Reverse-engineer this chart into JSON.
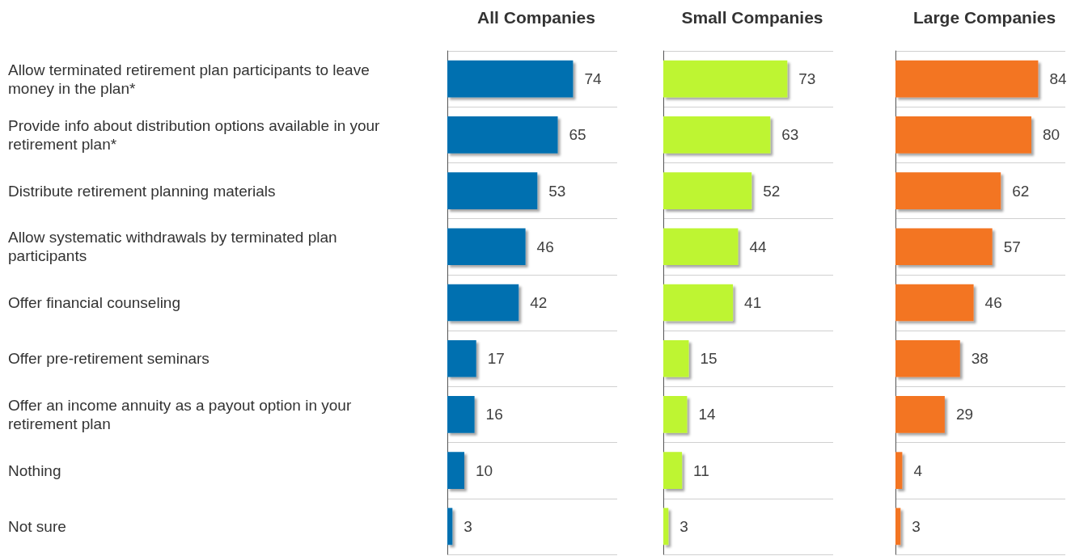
{
  "chart_data": [
    {
      "type": "bar",
      "orientation": "horizontal",
      "title": "All Companies",
      "categories": [
        "Allow terminated retirement plan participants to leave money in the plan*",
        "Provide info about distribution options available in your retirement plan*",
        "Distribute retirement planning materials",
        "Allow systematic withdrawals by terminated plan participants",
        "Offer financial counseling",
        "Offer pre-retirement seminars",
        "Offer an income annuity as a payout option in your retirement plan",
        "Nothing",
        "Not sure"
      ],
      "values": [
        74,
        65,
        53,
        46,
        42,
        17,
        16,
        10,
        3
      ],
      "color": "#0070b0",
      "data_labels": true,
      "tick_labels": "y",
      "grid": "y"
    },
    {
      "type": "bar",
      "orientation": "horizontal",
      "title": "Small Companies",
      "categories": [
        null,
        null,
        null,
        null,
        null,
        null,
        null,
        null,
        null
      ],
      "values": [
        73,
        63,
        52,
        44,
        41,
        15,
        14,
        11,
        3
      ],
      "color": "#bef531",
      "data_labels": true,
      "tick_labels": false,
      "grid": "y"
    },
    {
      "type": "bar",
      "orientation": "horizontal",
      "title": "Large Companies",
      "categories": [
        null,
        null,
        null,
        null,
        null,
        null,
        null,
        null,
        null
      ],
      "values": [
        84,
        80,
        62,
        57,
        46,
        38,
        29,
        4,
        3
      ],
      "color": "#f37422",
      "data_labels": true,
      "tick_labels": false,
      "grid": "y"
    }
  ]
}
